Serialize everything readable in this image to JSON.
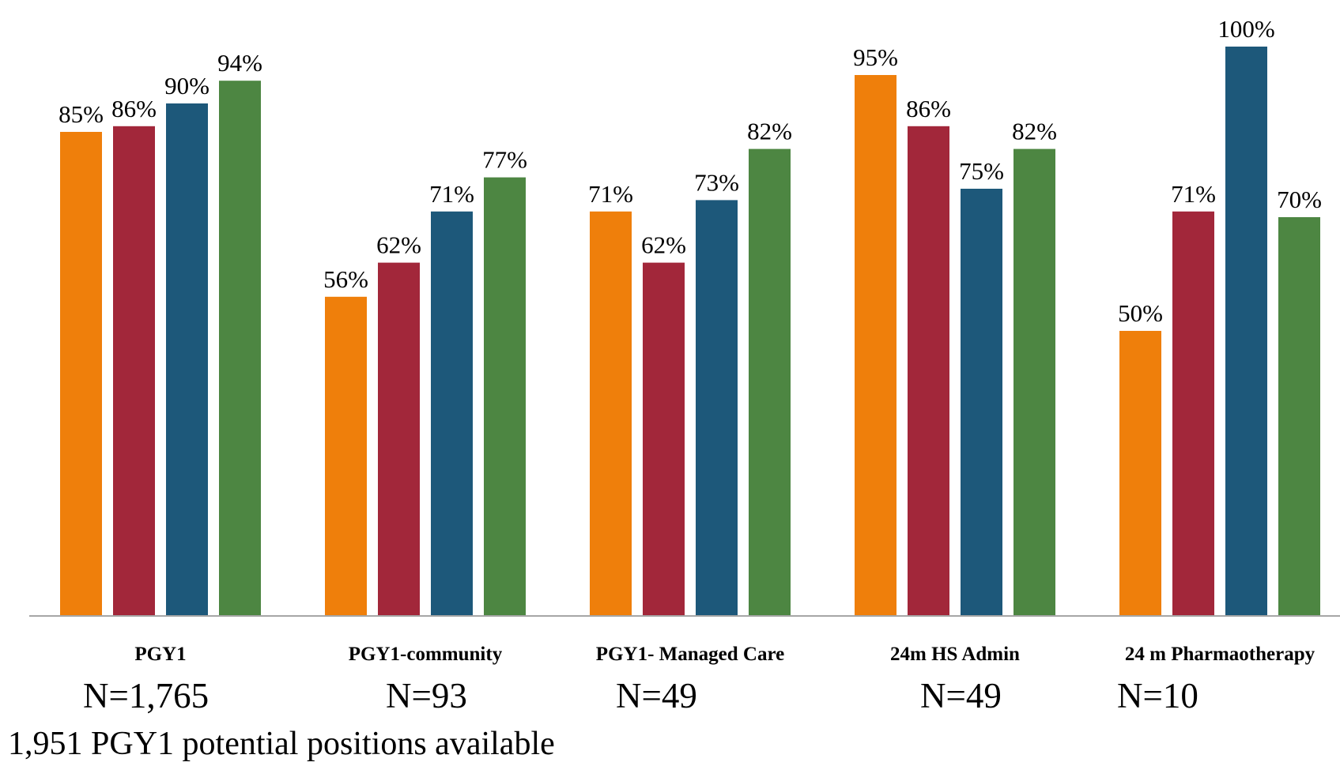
{
  "chart_data": {
    "type": "bar",
    "categories": [
      "PGY1",
      "PGY1-community",
      "PGY1- Managed Care",
      "24m HS Admin",
      "24 m Pharmaotherapy"
    ],
    "series": [
      {
        "values": [
          85,
          56,
          71,
          95,
          50
        ],
        "labels": [
          "85%",
          "56%",
          "71%",
          "95%",
          "50%"
        ],
        "color": "#ef7f0b"
      },
      {
        "values": [
          86,
          62,
          62,
          86,
          71
        ],
        "labels": [
          "86%",
          "62%",
          "62%",
          "86%",
          "71%"
        ],
        "color": "#a2273a"
      },
      {
        "values": [
          90,
          71,
          73,
          75,
          100
        ],
        "labels": [
          "90%",
          "71%",
          "73%",
          "75%",
          "100%"
        ],
        "color": "#1d587a"
      },
      {
        "values": [
          94,
          77,
          82,
          82,
          70
        ],
        "labels": [
          "94%",
          "77%",
          "82%",
          "82%",
          "70%"
        ],
        "color": "#4d8642"
      }
    ],
    "ylim": [
      0,
      100
    ],
    "grid": false,
    "legend": "none"
  },
  "n_labels": [
    "N=1,765",
    "N=93",
    "N=49",
    "N=49",
    "N=10"
  ],
  "footnote": "1,951  PGY1 potential positions available"
}
